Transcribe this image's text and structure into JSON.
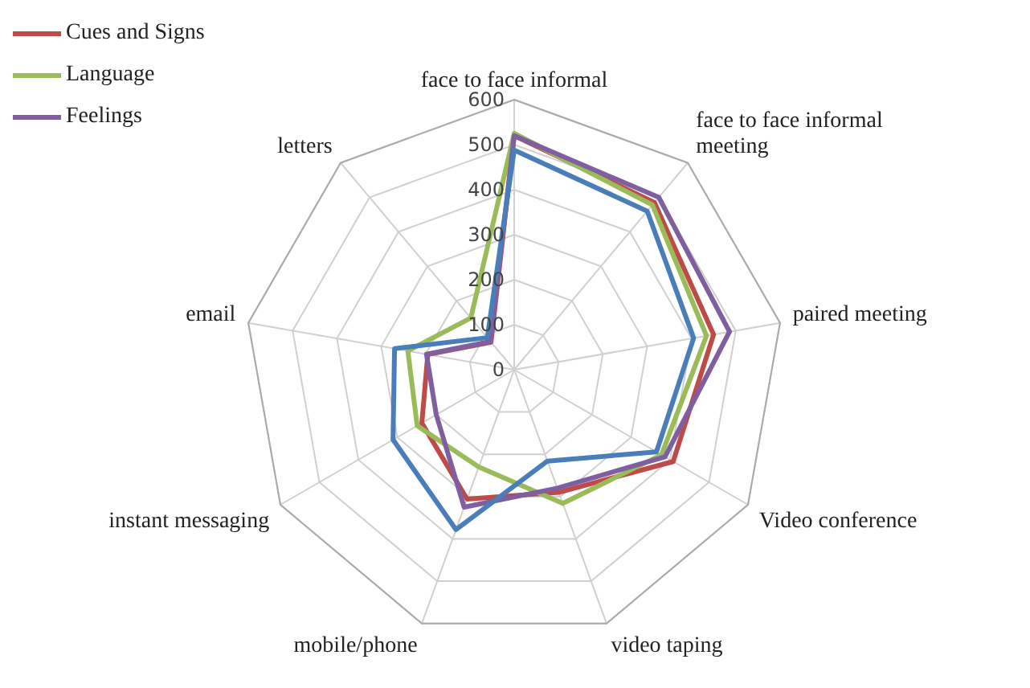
{
  "chart_data": {
    "type": "radar",
    "categories": [
      "face to face informal",
      "face to face informal meeting",
      "paired meeting",
      "Video conference",
      "video taping",
      "mobile/phone",
      "instant messaging",
      "email",
      "letters"
    ],
    "series": [
      {
        "name": "Cues and Signs",
        "color": "#be4b48",
        "values": [
          520,
          485,
          450,
          408,
          290,
          306,
          237,
          195,
          80
        ]
      },
      {
        "name": "Language",
        "color": "#9bbb59",
        "values": [
          525,
          478,
          434,
          378,
          316,
          230,
          249,
          240,
          150
        ]
      },
      {
        "name": "Feelings",
        "color": "#7f5fa0",
        "values": [
          520,
          500,
          486,
          387,
          280,
          325,
          200,
          198,
          82
        ]
      },
      {
        "color": "#4a7ebb",
        "values": [
          488,
          460,
          405,
          365,
          216,
          378,
          311,
          270,
          93
        ]
      }
    ],
    "ylim": [
      0,
      600
    ],
    "yticks": [
      0,
      100,
      200,
      300,
      400,
      500,
      600
    ],
    "grid": true,
    "legend": "top left",
    "marker": "none"
  }
}
